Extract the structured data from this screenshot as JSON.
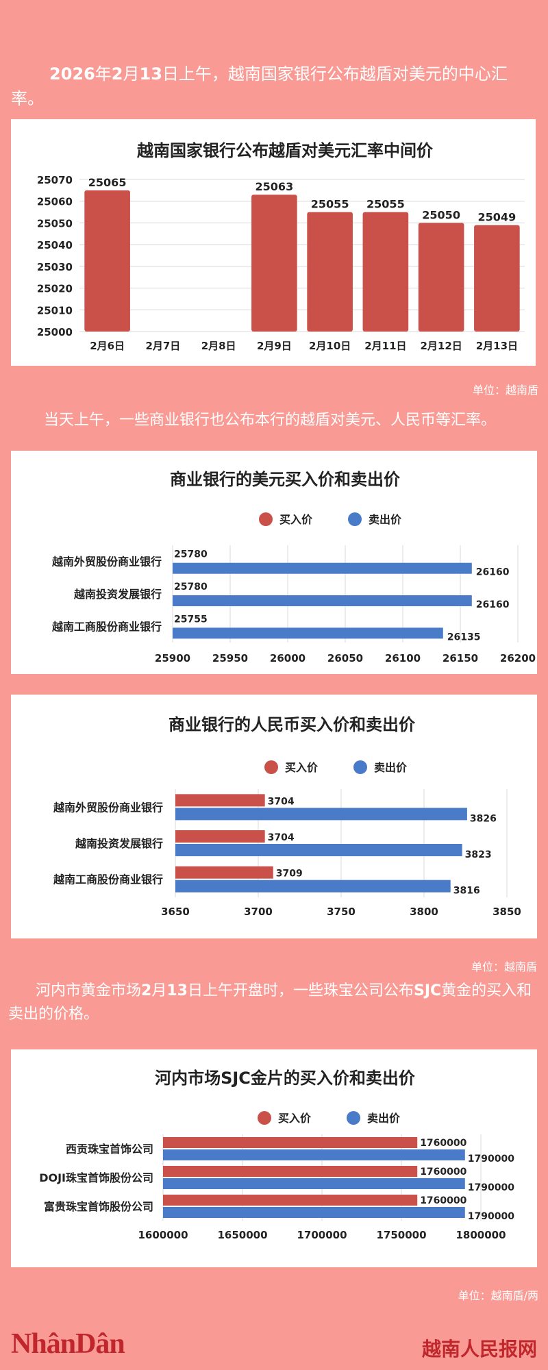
{
  "intro_1": {
    "bold": "2026",
    "text_a": "年",
    "bold2": "2",
    "text_b": "月",
    "bold3": "13",
    "text_c": "日上午，越南国家银行公布越盾对美元的中心汇率。"
  },
  "chart1": {
    "unit": "单位：越南盾"
  },
  "intro_2": "当天上午，一些商业银行也公布本行的越盾对美元、人民币等汇率。",
  "chart4_unit": "单位：越南盾",
  "intro_3": {
    "a": "河内市黄金市场",
    "b": "2",
    "c": "月",
    "d": "13",
    "e": "日上午开盘时，一些珠宝公司公布",
    "f": "SJC",
    "g": "黄金的买入和卖出的价格。"
  },
  "chart5_unit": "单位：越南盾/两",
  "footer": {
    "logo_a": "Nhân",
    "logo_b": "Dân",
    "right": "越南人民报网"
  },
  "colors": {
    "buy": "#c9514a",
    "sell": "#4a7bc8",
    "bg": "#f99b94"
  },
  "chart_data": [
    {
      "type": "bar",
      "title": "越南国家银行公布越盾对美元汇率中间价",
      "categories": [
        "2月6日",
        "2月7日",
        "2月8日",
        "2月9日",
        "2月10日",
        "2月11日",
        "2月12日",
        "2月13日"
      ],
      "values": [
        25065,
        null,
        null,
        25063,
        25055,
        25055,
        25050,
        25049
      ],
      "ylim": [
        25000,
        25070
      ],
      "yticks": [
        25000,
        25010,
        25020,
        25030,
        25040,
        25050,
        25060,
        25070
      ],
      "grid": true
    },
    {
      "type": "bar",
      "orientation": "horizontal",
      "title": "商业银行的美元买入价和卖出价",
      "legend": [
        "买入价",
        "卖出价"
      ],
      "legend_position": "top",
      "categories": [
        "越南外贸股份商业银行",
        "越南投资发展银行",
        "越南工商股份商业银行"
      ],
      "series": [
        {
          "name": "买入价",
          "values": [
            25780,
            25780,
            25755
          ]
        },
        {
          "name": "卖出价",
          "values": [
            26160,
            26160,
            26135
          ]
        }
      ],
      "xlim": [
        25900,
        26200
      ],
      "xticks": [
        25900,
        25950,
        26000,
        26050,
        26100,
        26150,
        26200
      ]
    },
    {
      "type": "bar",
      "orientation": "horizontal",
      "title": "商业银行的人民币买入价和卖出价",
      "legend": [
        "买入价",
        "卖出价"
      ],
      "legend_position": "top",
      "categories": [
        "越南外贸股份商业银行",
        "越南投资发展银行",
        "越南工商股份商业银行"
      ],
      "series": [
        {
          "name": "买入价",
          "values": [
            3704,
            3704,
            3709
          ]
        },
        {
          "name": "卖出价",
          "values": [
            3826,
            3823,
            3816
          ]
        }
      ],
      "xlim": [
        3650,
        3850
      ],
      "xticks": [
        3650,
        3700,
        3750,
        3800,
        3850
      ]
    },
    {
      "type": "bar",
      "orientation": "horizontal",
      "title": "河内市场SJC金片的买入价和卖出价",
      "legend": [
        "买入价",
        "卖出价"
      ],
      "legend_position": "top",
      "categories": [
        "西贡珠宝首饰公司",
        "DOJI珠宝首饰股份公司",
        "富贵珠宝首饰股份公司"
      ],
      "series": [
        {
          "name": "买入价",
          "values": [
            1760000,
            1760000,
            1760000
          ]
        },
        {
          "name": "卖出价",
          "values": [
            1790000,
            1790000,
            1790000
          ]
        }
      ],
      "xlim": [
        1600000,
        1800000
      ],
      "xticks": [
        1600000,
        1650000,
        1700000,
        1750000,
        1800000
      ]
    }
  ]
}
